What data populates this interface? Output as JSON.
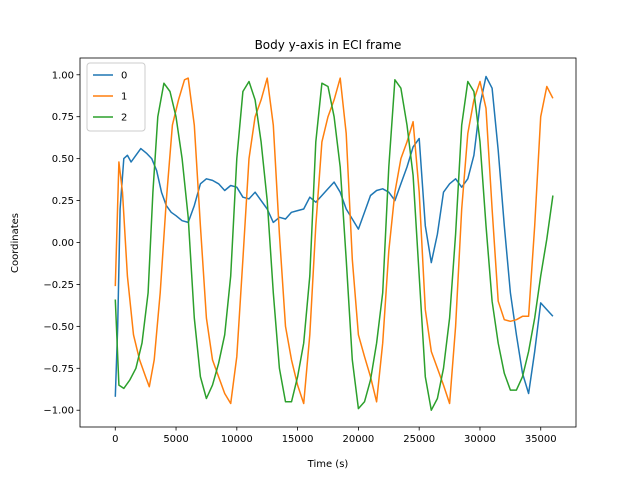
{
  "chart_data": {
    "type": "line",
    "title": "Body y-axis in ECI frame",
    "xlabel": "Time (s)",
    "ylabel": "Coordinates",
    "xlim": [
      -2900,
      37900
    ],
    "ylim": [
      -1.1,
      1.1
    ],
    "xticks": [
      0,
      5000,
      10000,
      15000,
      20000,
      25000,
      30000,
      35000
    ],
    "xtick_labels": [
      "0",
      "5000",
      "10000",
      "15000",
      "20000",
      "25000",
      "30000",
      "35000"
    ],
    "yticks": [
      -1.0,
      -0.75,
      -0.5,
      -0.25,
      0.0,
      0.25,
      0.5,
      0.75,
      1.0
    ],
    "ytick_labels": [
      "−1.00",
      "−0.75",
      "−0.50",
      "−0.25",
      "0.00",
      "0.25",
      "0.50",
      "0.75",
      "1.00"
    ],
    "grid": false,
    "legend_position": "top-left",
    "series": [
      {
        "name": "0",
        "color": "#1f77b4",
        "points": [
          [
            0,
            -0.92
          ],
          [
            200,
            -0.5
          ],
          [
            400,
            0.2
          ],
          [
            700,
            0.5
          ],
          [
            1000,
            0.52
          ],
          [
            1300,
            0.48
          ],
          [
            1700,
            0.52
          ],
          [
            2100,
            0.56
          ],
          [
            2600,
            0.53
          ],
          [
            3000,
            0.5
          ],
          [
            3400,
            0.43
          ],
          [
            3800,
            0.3
          ],
          [
            4200,
            0.22
          ],
          [
            4600,
            0.18
          ],
          [
            5000,
            0.16
          ],
          [
            5500,
            0.13
          ],
          [
            6000,
            0.12
          ],
          [
            6500,
            0.22
          ],
          [
            7000,
            0.35
          ],
          [
            7500,
            0.38
          ],
          [
            8000,
            0.37
          ],
          [
            8500,
            0.35
          ],
          [
            9000,
            0.31
          ],
          [
            9500,
            0.34
          ],
          [
            10000,
            0.33
          ],
          [
            10500,
            0.27
          ],
          [
            11000,
            0.26
          ],
          [
            11500,
            0.3
          ],
          [
            12000,
            0.25
          ],
          [
            12500,
            0.2
          ],
          [
            13000,
            0.12
          ],
          [
            13500,
            0.15
          ],
          [
            14000,
            0.14
          ],
          [
            14500,
            0.18
          ],
          [
            15000,
            0.19
          ],
          [
            15500,
            0.2
          ],
          [
            16000,
            0.27
          ],
          [
            16500,
            0.24
          ],
          [
            17000,
            0.28
          ],
          [
            17500,
            0.32
          ],
          [
            18000,
            0.36
          ],
          [
            18500,
            0.3
          ],
          [
            19000,
            0.2
          ],
          [
            19500,
            0.14
          ],
          [
            20000,
            0.08
          ],
          [
            20500,
            0.18
          ],
          [
            21000,
            0.28
          ],
          [
            21500,
            0.31
          ],
          [
            22000,
            0.32
          ],
          [
            22500,
            0.3
          ],
          [
            23000,
            0.25
          ],
          [
            23500,
            0.35
          ],
          [
            24000,
            0.45
          ],
          [
            24500,
            0.57
          ],
          [
            25000,
            0.62
          ],
          [
            25500,
            0.1
          ],
          [
            26000,
            -0.12
          ],
          [
            26500,
            0.05
          ],
          [
            27000,
            0.3
          ],
          [
            27500,
            0.35
          ],
          [
            28000,
            0.38
          ],
          [
            28500,
            0.33
          ],
          [
            29000,
            0.38
          ],
          [
            29500,
            0.52
          ],
          [
            30000,
            0.82
          ],
          [
            30500,
            0.99
          ],
          [
            31000,
            0.92
          ],
          [
            31500,
            0.55
          ],
          [
            32000,
            0.1
          ],
          [
            32500,
            -0.3
          ],
          [
            33000,
            -0.55
          ],
          [
            33500,
            -0.78
          ],
          [
            34000,
            -0.9
          ],
          [
            34500,
            -0.65
          ],
          [
            35000,
            -0.36
          ],
          [
            35500,
            -0.4
          ],
          [
            36000,
            -0.44
          ]
        ]
      },
      {
        "name": "1",
        "color": "#ff7f0e",
        "points": [
          [
            0,
            -0.26
          ],
          [
            300,
            0.48
          ],
          [
            600,
            0.3
          ],
          [
            1000,
            -0.2
          ],
          [
            1500,
            -0.55
          ],
          [
            2000,
            -0.7
          ],
          [
            2500,
            -0.8
          ],
          [
            2800,
            -0.86
          ],
          [
            3200,
            -0.7
          ],
          [
            3700,
            -0.3
          ],
          [
            4200,
            0.25
          ],
          [
            4700,
            0.7
          ],
          [
            5200,
            0.85
          ],
          [
            5700,
            0.97
          ],
          [
            6000,
            0.98
          ],
          [
            6500,
            0.7
          ],
          [
            7000,
            0.1
          ],
          [
            7500,
            -0.45
          ],
          [
            8000,
            -0.7
          ],
          [
            8500,
            -0.8
          ],
          [
            9000,
            -0.9
          ],
          [
            9500,
            -0.96
          ],
          [
            10000,
            -0.68
          ],
          [
            10500,
            -0.1
          ],
          [
            11000,
            0.5
          ],
          [
            11500,
            0.75
          ],
          [
            12000,
            0.85
          ],
          [
            12500,
            0.98
          ],
          [
            13000,
            0.7
          ],
          [
            13500,
            0.05
          ],
          [
            14000,
            -0.5
          ],
          [
            14500,
            -0.7
          ],
          [
            15000,
            -0.85
          ],
          [
            15500,
            -0.96
          ],
          [
            16000,
            -0.55
          ],
          [
            16500,
            0.1
          ],
          [
            17000,
            0.6
          ],
          [
            17500,
            0.75
          ],
          [
            18000,
            0.85
          ],
          [
            18500,
            0.98
          ],
          [
            19000,
            0.65
          ],
          [
            19500,
            -0.1
          ],
          [
            20000,
            -0.55
          ],
          [
            20500,
            -0.68
          ],
          [
            21000,
            -0.8
          ],
          [
            21500,
            -0.95
          ],
          [
            22000,
            -0.6
          ],
          [
            22500,
            -0.05
          ],
          [
            23000,
            0.3
          ],
          [
            23500,
            0.5
          ],
          [
            24000,
            0.6
          ],
          [
            24500,
            0.72
          ],
          [
            25000,
            0.3
          ],
          [
            25500,
            -0.4
          ],
          [
            26000,
            -0.65
          ],
          [
            26500,
            -0.75
          ],
          [
            27000,
            -0.85
          ],
          [
            27500,
            -0.96
          ],
          [
            28000,
            -0.5
          ],
          [
            28500,
            0.2
          ],
          [
            29000,
            0.65
          ],
          [
            29500,
            0.85
          ],
          [
            30000,
            0.96
          ],
          [
            30500,
            0.8
          ],
          [
            31000,
            0.2
          ],
          [
            31500,
            -0.35
          ],
          [
            32000,
            -0.46
          ],
          [
            32500,
            -0.47
          ],
          [
            33000,
            -0.46
          ],
          [
            33500,
            -0.44
          ],
          [
            34000,
            -0.44
          ],
          [
            34500,
            0.1
          ],
          [
            35000,
            0.75
          ],
          [
            35500,
            0.93
          ],
          [
            36000,
            0.86
          ]
        ]
      },
      {
        "name": "2",
        "color": "#2ca02c",
        "points": [
          [
            0,
            -0.34
          ],
          [
            300,
            -0.85
          ],
          [
            700,
            -0.87
          ],
          [
            1200,
            -0.82
          ],
          [
            1700,
            -0.75
          ],
          [
            2200,
            -0.6
          ],
          [
            2700,
            -0.3
          ],
          [
            3100,
            0.3
          ],
          [
            3500,
            0.75
          ],
          [
            4000,
            0.95
          ],
          [
            4500,
            0.9
          ],
          [
            5000,
            0.75
          ],
          [
            5500,
            0.5
          ],
          [
            6000,
            0.15
          ],
          [
            6500,
            -0.45
          ],
          [
            7000,
            -0.8
          ],
          [
            7500,
            -0.93
          ],
          [
            8000,
            -0.85
          ],
          [
            8500,
            -0.72
          ],
          [
            9000,
            -0.55
          ],
          [
            9500,
            -0.2
          ],
          [
            10000,
            0.5
          ],
          [
            10500,
            0.9
          ],
          [
            11000,
            0.96
          ],
          [
            11500,
            0.85
          ],
          [
            12000,
            0.6
          ],
          [
            12500,
            0.25
          ],
          [
            13000,
            -0.3
          ],
          [
            13500,
            -0.75
          ],
          [
            14000,
            -0.95
          ],
          [
            14500,
            -0.95
          ],
          [
            15000,
            -0.8
          ],
          [
            15500,
            -0.6
          ],
          [
            16000,
            -0.2
          ],
          [
            16500,
            0.6
          ],
          [
            17000,
            0.95
          ],
          [
            17500,
            0.93
          ],
          [
            18000,
            0.75
          ],
          [
            18500,
            0.45
          ],
          [
            19000,
            -0.1
          ],
          [
            19500,
            -0.7
          ],
          [
            20000,
            -0.99
          ],
          [
            20500,
            -0.95
          ],
          [
            21000,
            -0.82
          ],
          [
            21500,
            -0.6
          ],
          [
            22000,
            -0.3
          ],
          [
            22500,
            0.45
          ],
          [
            23000,
            0.97
          ],
          [
            23500,
            0.92
          ],
          [
            24000,
            0.7
          ],
          [
            24500,
            0.4
          ],
          [
            25000,
            -0.2
          ],
          [
            25500,
            -0.8
          ],
          [
            26000,
            -1.0
          ],
          [
            26500,
            -0.93
          ],
          [
            27000,
            -0.75
          ],
          [
            27500,
            -0.45
          ],
          [
            28000,
            0.05
          ],
          [
            28500,
            0.7
          ],
          [
            29000,
            0.96
          ],
          [
            29500,
            0.9
          ],
          [
            30000,
            0.6
          ],
          [
            30500,
            0.1
          ],
          [
            31000,
            -0.35
          ],
          [
            31500,
            -0.6
          ],
          [
            32000,
            -0.78
          ],
          [
            32500,
            -0.88
          ],
          [
            33000,
            -0.88
          ],
          [
            33500,
            -0.8
          ],
          [
            34000,
            -0.65
          ],
          [
            34500,
            -0.45
          ],
          [
            35000,
            -0.2
          ],
          [
            35500,
            0.02
          ],
          [
            36000,
            0.28
          ]
        ]
      }
    ]
  }
}
